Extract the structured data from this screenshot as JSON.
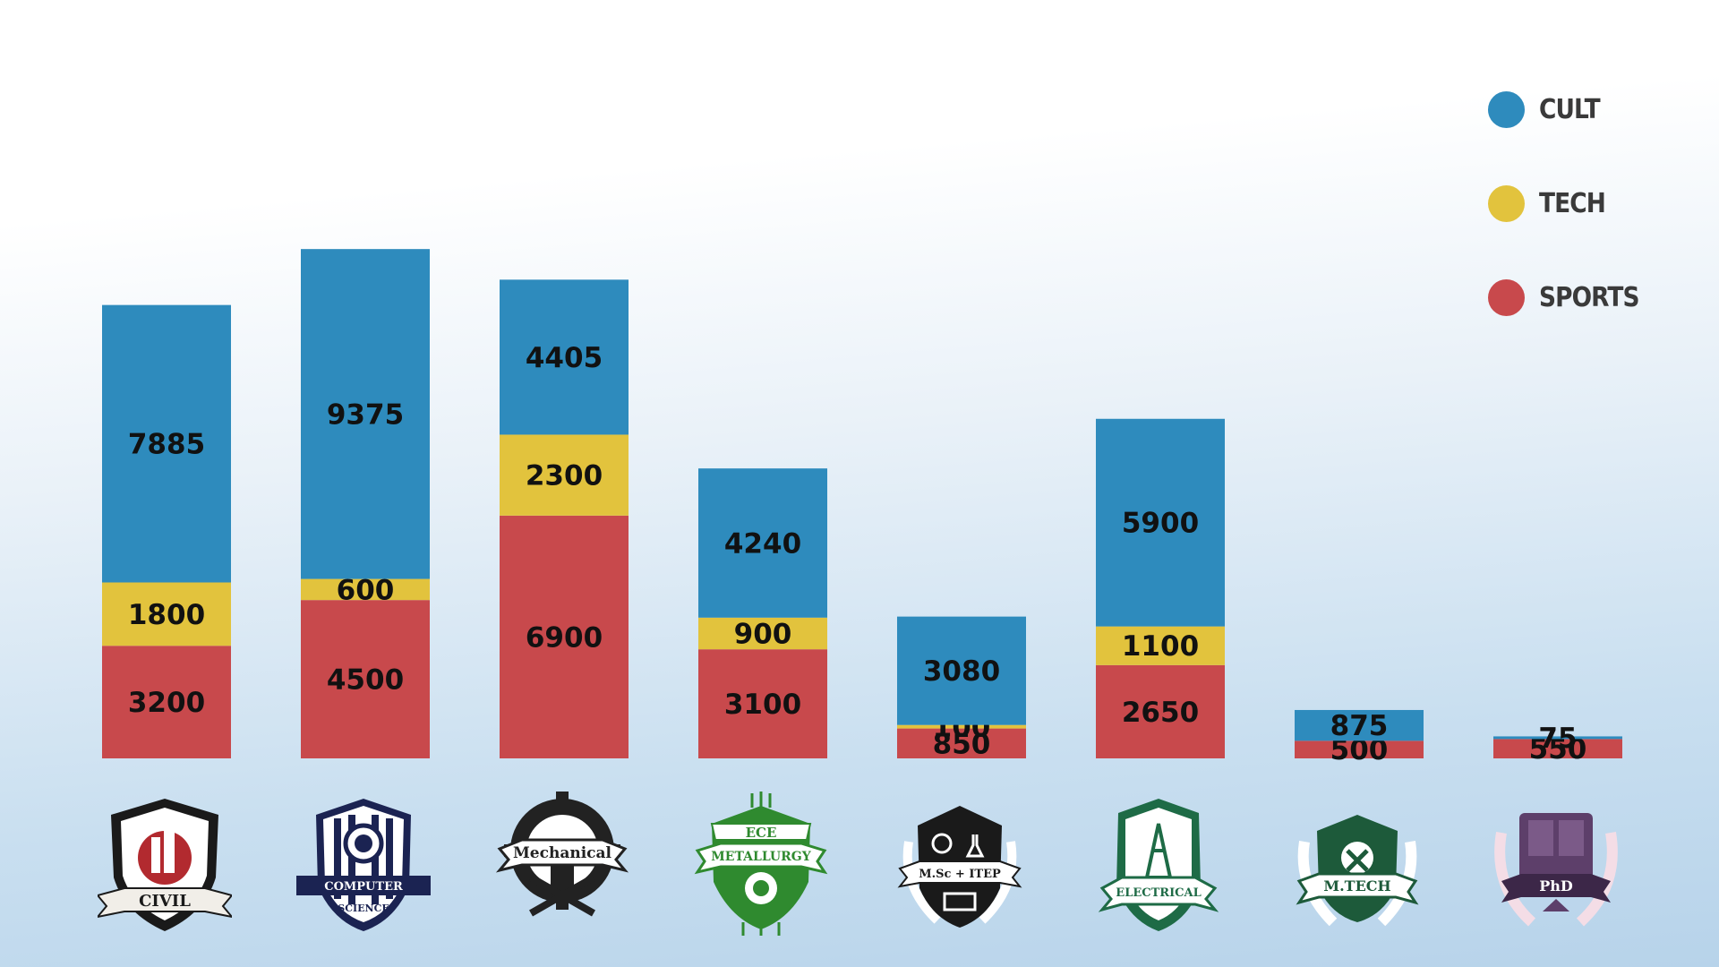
{
  "chart_data": {
    "type": "bar",
    "stacked": true,
    "categories": [
      "CIVIL",
      "COMPUTER SCIENCE",
      "Mechanical",
      "ECE METALLURGY",
      "M.Sc + ITEP",
      "ELECTRICAL",
      "M.TECH",
      "PhD"
    ],
    "series": [
      {
        "name": "SPORTS",
        "color": "#c8494c",
        "values": [
          3200,
          4500,
          6900,
          3100,
          850,
          2650,
          500,
          550
        ]
      },
      {
        "name": "TECH",
        "color": "#e2c33d",
        "values": [
          1800,
          600,
          2300,
          900,
          100,
          1100,
          0,
          0
        ]
      },
      {
        "name": "CULT",
        "color": "#2e8bbd",
        "values": [
          7885,
          9375,
          4405,
          4240,
          3080,
          5900,
          875,
          75
        ]
      }
    ],
    "ylim": [
      0,
      14250
    ],
    "grid": false,
    "legend_position": "top-right"
  },
  "legend": {
    "items": [
      {
        "label": "CULT",
        "color": "#2e8bbd"
      },
      {
        "label": "TECH",
        "color": "#e2c33d"
      },
      {
        "label": "SPORTS",
        "color": "#c8494c"
      }
    ]
  },
  "logos": {
    "civil": {
      "text": "CIVIL",
      "icon": "building-gear-icon",
      "color": "#b22a2f"
    },
    "cse": {
      "text1": "COMPUTER",
      "text2": "SCIENCE",
      "icon": "globe-gear-icon",
      "color": "#1b2352"
    },
    "mech": {
      "text": "Mechanical",
      "icon": "piston-wrench-icon",
      "color": "#222222"
    },
    "ece": {
      "text1": "ECE",
      "text2": "METALLURGY",
      "icon": "circuit-icon",
      "color": "#2f8a2f"
    },
    "msc": {
      "text": "M.Sc + ITEP",
      "icon": "globe-flask-book-icon",
      "color": "#1a1a1a"
    },
    "elec": {
      "text": "ELECTRICAL",
      "icon": "tower-icon",
      "color": "#1e6b46"
    },
    "mtech": {
      "text": "M.TECH",
      "icon": "tools-laurel-icon",
      "color": "#1d5a3a"
    },
    "phd": {
      "text": "PhD",
      "icon": "microscope-tools-icon",
      "color": "#5d3f6a"
    }
  }
}
